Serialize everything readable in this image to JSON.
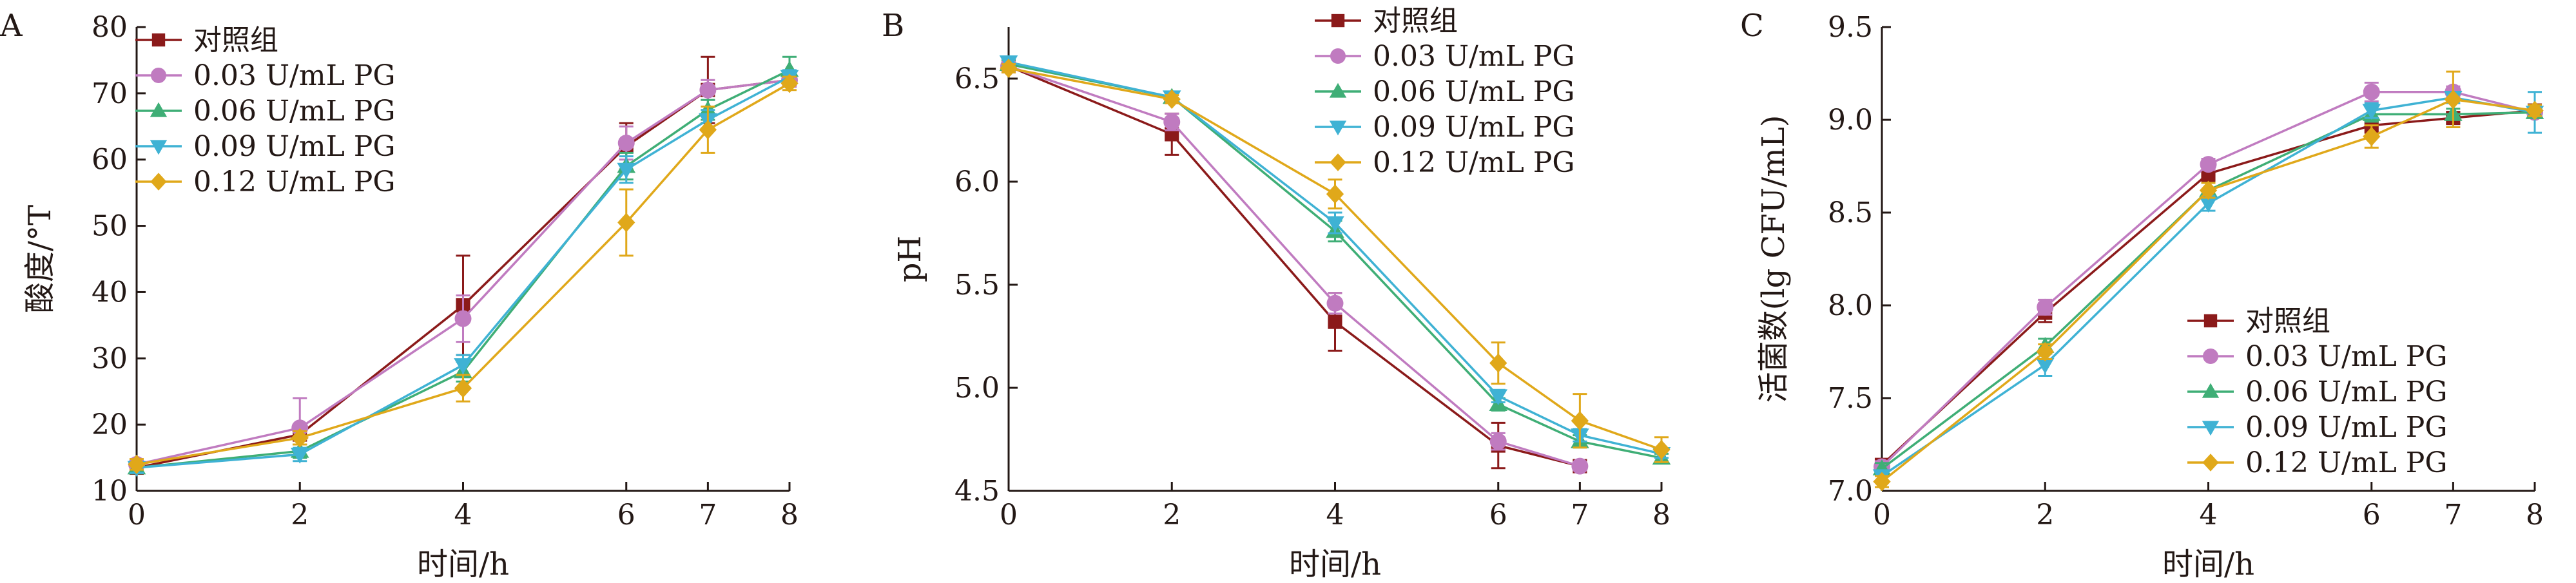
{
  "chart_data": [
    {
      "type": "line",
      "panel_label": "A",
      "xlabel": "时间/h",
      "ylabel": "酸度/°T",
      "xlim": [
        0,
        8
      ],
      "ylim": [
        10,
        80
      ],
      "xticks": [
        0,
        2,
        4,
        6,
        7,
        8
      ],
      "yticks": [
        10,
        20,
        30,
        40,
        50,
        60,
        70,
        80
      ],
      "legend_position": "top-left",
      "x": [
        0,
        2,
        4,
        6,
        7,
        8
      ],
      "series": [
        {
          "name": "对照组",
          "marker": "square",
          "color": "#8b1a1a",
          "values": [
            13.5,
            18.5,
            38,
            62,
            70.5,
            72
          ],
          "errors": [
            0.8,
            1.5,
            7.5,
            3.5,
            5,
            1
          ]
        },
        {
          "name": "0.03 U/mL PG",
          "marker": "circle",
          "color": "#c07bc0",
          "values": [
            14,
            19.5,
            36,
            62.5,
            70.5,
            72
          ],
          "errors": [
            0.8,
            4.5,
            3.5,
            2.5,
            1.5,
            1
          ]
        },
        {
          "name": "0.06 U/mL PG",
          "marker": "triangle-up",
          "color": "#3fae76",
          "values": [
            13.5,
            16,
            28,
            59,
            67.5,
            73.5
          ],
          "errors": [
            0.8,
            1,
            1.5,
            2,
            1.5,
            2
          ]
        },
        {
          "name": "0.09 U/mL PG",
          "marker": "triangle-down",
          "color": "#3fb2d4",
          "values": [
            13.5,
            15.5,
            29,
            58.5,
            66,
            72.5
          ],
          "errors": [
            0.8,
            1,
            1.5,
            2,
            1.5,
            1
          ]
        },
        {
          "name": "0.12 U/mL PG",
          "marker": "diamond",
          "color": "#e0a81a",
          "values": [
            14,
            18,
            25.5,
            50.5,
            64.5,
            71.5
          ],
          "errors": [
            0.8,
            1,
            2,
            5,
            3.5,
            1
          ]
        }
      ]
    },
    {
      "type": "line",
      "panel_label": "B",
      "xlabel": "时间/h",
      "ylabel": "pH",
      "xlim": [
        0,
        8
      ],
      "ylim": [
        4.5,
        6.75
      ],
      "xticks": [
        0,
        2,
        4,
        6,
        7,
        8
      ],
      "yticks": [
        4.5,
        5.0,
        5.5,
        6.0,
        6.5
      ],
      "ytick_labels": [
        "4.5",
        "5.0",
        "5.5",
        "6.0",
        "6.5"
      ],
      "legend_position": "top-right",
      "x": [
        0,
        2,
        4,
        6,
        7,
        8
      ],
      "series": [
        {
          "name": "对照组",
          "marker": "square",
          "color": "#8b1a1a",
          "values": [
            6.56,
            6.23,
            5.32,
            4.72,
            4.62,
            null
          ],
          "errors": [
            0.02,
            0.1,
            0.14,
            0.11,
            0.02,
            null
          ]
        },
        {
          "name": "0.03 U/mL PG",
          "marker": "circle",
          "color": "#c07bc0",
          "values": [
            6.56,
            6.29,
            5.41,
            4.74,
            4.62,
            null
          ],
          "errors": [
            0.02,
            0.04,
            0.05,
            0.04,
            0.02,
            null
          ]
        },
        {
          "name": "0.06 U/mL PG",
          "marker": "triangle-up",
          "color": "#3fae76",
          "values": [
            6.57,
            6.41,
            5.76,
            4.92,
            4.74,
            4.66
          ],
          "errors": [
            0.02,
            0.02,
            0.05,
            0.03,
            0.03,
            0.02
          ]
        },
        {
          "name": "0.09 U/mL PG",
          "marker": "triangle-down",
          "color": "#3fb2d4",
          "values": [
            6.58,
            6.41,
            5.8,
            4.96,
            4.77,
            4.68
          ],
          "errors": [
            0.02,
            0.02,
            0.05,
            0.03,
            0.03,
            0.02
          ]
        },
        {
          "name": "0.12 U/mL PG",
          "marker": "diamond",
          "color": "#e0a81a",
          "values": [
            6.55,
            6.4,
            5.94,
            5.12,
            4.84,
            4.7
          ],
          "errors": [
            0.02,
            0.02,
            0.07,
            0.1,
            0.13,
            0.06
          ]
        }
      ]
    },
    {
      "type": "line",
      "panel_label": "C",
      "xlabel": "时间/h",
      "ylabel": "活菌数(lg CFU/mL)",
      "xlim": [
        0,
        8
      ],
      "ylim": [
        7.0,
        9.5
      ],
      "xticks": [
        0,
        2,
        4,
        6,
        7,
        8
      ],
      "yticks": [
        7.0,
        7.5,
        8.0,
        8.5,
        9.0,
        9.5
      ],
      "ytick_labels": [
        "7.0",
        "7.5",
        "8.0",
        "8.5",
        "9.0",
        "9.5"
      ],
      "legend_position": "bottom-right",
      "x": [
        0,
        2,
        4,
        6,
        7,
        8
      ],
      "series": [
        {
          "name": "对照组",
          "marker": "square",
          "color": "#8b1a1a",
          "values": [
            7.14,
            7.96,
            8.71,
            8.97,
            9.01,
            9.05
          ],
          "errors": [
            0.03,
            0.05,
            0.04,
            0.04,
            0.03,
            0.03
          ]
        },
        {
          "name": "0.03 U/mL PG",
          "marker": "circle",
          "color": "#c07bc0",
          "values": [
            7.13,
            7.99,
            8.76,
            9.15,
            9.15,
            9.04
          ],
          "errors": [
            0.03,
            0.04,
            0.03,
            0.05,
            0.03,
            0.03
          ]
        },
        {
          "name": "0.06 U/mL PG",
          "marker": "triangle-up",
          "color": "#3fae76",
          "values": [
            7.12,
            7.78,
            8.62,
            9.03,
            9.03,
            9.04
          ],
          "errors": [
            0.03,
            0.04,
            0.04,
            0.04,
            0.03,
            0.03
          ]
        },
        {
          "name": "0.09 U/mL PG",
          "marker": "triangle-down",
          "color": "#3fb2d4",
          "values": [
            7.08,
            7.68,
            8.55,
            9.05,
            9.12,
            9.04
          ],
          "errors": [
            0.03,
            0.06,
            0.04,
            0.04,
            0.03,
            0.11
          ]
        },
        {
          "name": "0.12 U/mL PG",
          "marker": "diamond",
          "color": "#e0a81a",
          "values": [
            7.05,
            7.75,
            8.62,
            8.91,
            9.11,
            9.05
          ],
          "errors": [
            0.03,
            0.04,
            0.04,
            0.06,
            0.15,
            0.03
          ]
        }
      ]
    }
  ]
}
